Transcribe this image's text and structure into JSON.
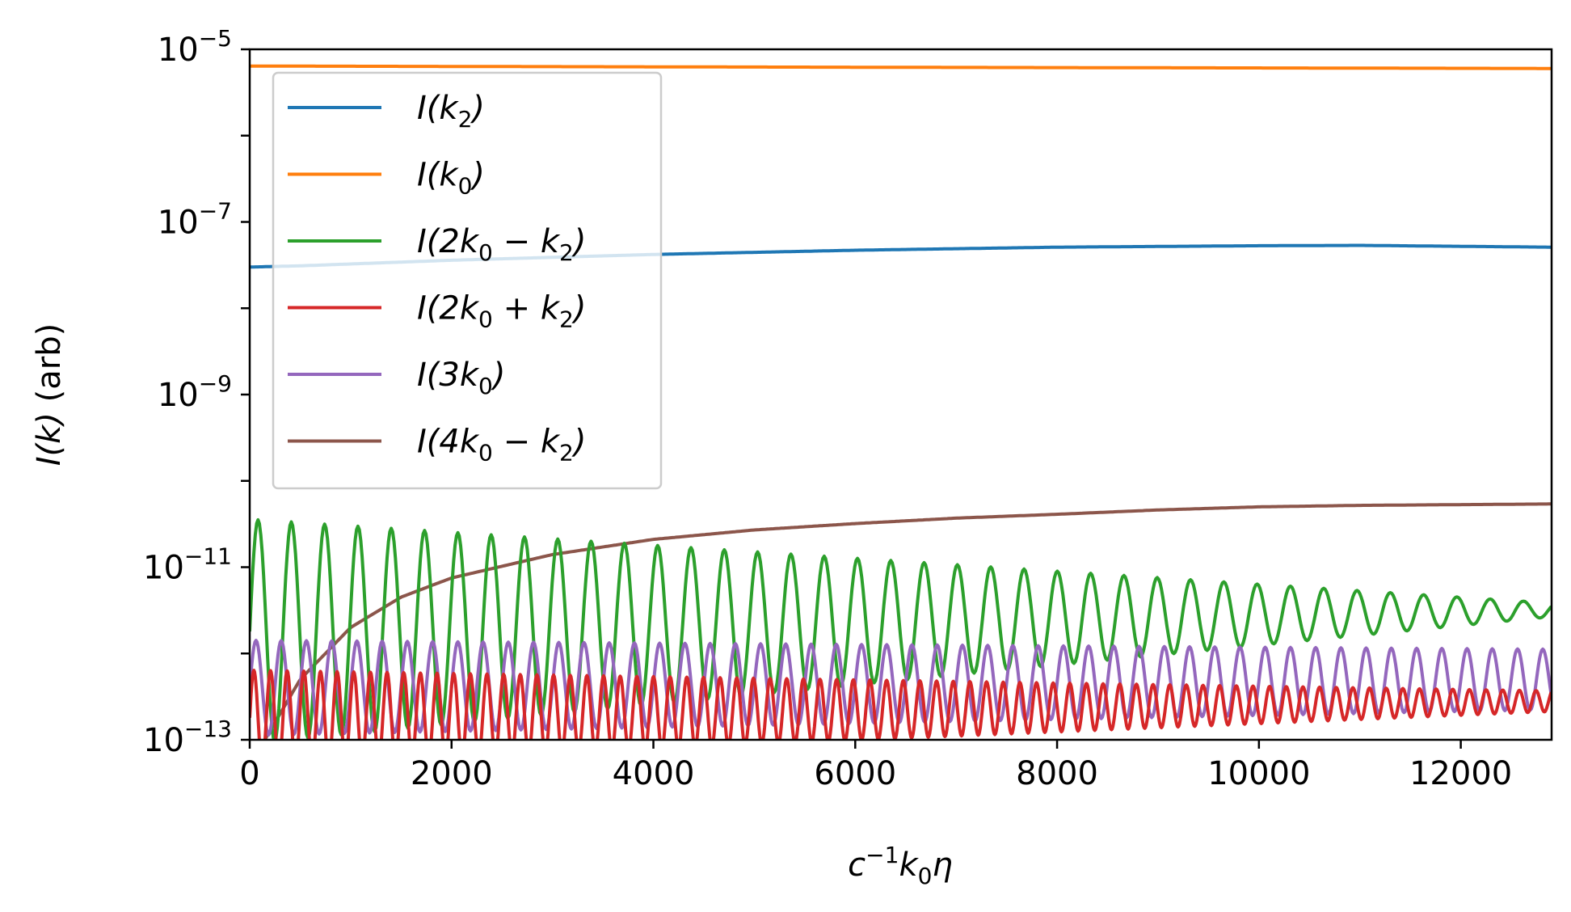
{
  "chart_data": {
    "type": "line",
    "title": "",
    "xlabel": "c^{-1} k_0 η",
    "xlabel_parts": {
      "c": "c",
      "sup": "−1",
      "k": "k",
      "sub": "0",
      "eta": "η"
    },
    "ylabel": "I(k) (arb)",
    "ylabel_parts": {
      "main": "I(k)",
      "unit": " (arb)"
    },
    "yscale": "log",
    "xlim": [
      0,
      12900
    ],
    "ylim": [
      1e-13,
      1e-05
    ],
    "xticks": [
      0,
      2000,
      4000,
      6000,
      8000,
      10000,
      12000
    ],
    "xtick_labels": [
      "0",
      "2000",
      "4000",
      "6000",
      "8000",
      "10000",
      "12000"
    ],
    "yticks_exp": [
      -13,
      -11,
      -9,
      -7,
      -5
    ],
    "ytick_base": "10",
    "ytick_exponents": [
      "−13",
      "−11",
      "−9",
      "−7",
      "−5"
    ],
    "legend_position": "top-left",
    "series": [
      {
        "name": "I(k₂)",
        "label": {
          "pre": "I(",
          "k1": "k",
          "s1": "2",
          "mid": "",
          "k2": "",
          "s2": "",
          "post": ")"
        },
        "color": "#1f77b4",
        "model": "blue",
        "points": [
          [
            0,
            3e-08
          ],
          [
            500,
            3.1e-08
          ],
          [
            2000,
            3.6e-08
          ],
          [
            4000,
            4.2e-08
          ],
          [
            6000,
            4.7e-08
          ],
          [
            8000,
            5.1e-08
          ],
          [
            10000,
            5.3e-08
          ],
          [
            11000,
            5.35e-08
          ],
          [
            12900,
            5.1e-08
          ]
        ]
      },
      {
        "name": "I(k₀)",
        "label": {
          "pre": "I(",
          "k1": "k",
          "s1": "0",
          "mid": "",
          "k2": "",
          "s2": "",
          "post": ")"
        },
        "color": "#ff7f0e",
        "model": "orange",
        "points": [
          [
            0,
            6.4e-06
          ],
          [
            6000,
            6.2e-06
          ],
          [
            12900,
            6e-06
          ]
        ]
      },
      {
        "name": "I(2k₀ − k₂)",
        "label": {
          "pre": "I(2",
          "k1": "k",
          "s1": "0",
          "mid": " − ",
          "k2": "k",
          "s2": "2",
          "post": ")"
        },
        "color": "#2ca02c",
        "model": "green",
        "mean_start": 1.8e-12,
        "mean_end": 3.2e-12,
        "amp_start": 1.3,
        "amp_end": 0.08,
        "period": 330
      },
      {
        "name": "I(2k₀ + k₂)",
        "label": {
          "pre": "I(2",
          "k1": "k",
          "s1": "0",
          "mid": " + ",
          "k2": "k",
          "s2": "2",
          "post": ")"
        },
        "color": "#d62728",
        "model": "red",
        "mean_start": 1.8e-13,
        "mean_end": 2.8e-13,
        "amp_start": 0.55,
        "amp_end": 0.12,
        "period": 165
      },
      {
        "name": "I(3k₀)",
        "label": {
          "pre": "I(3",
          "k1": "k",
          "s1": "0",
          "mid": "",
          "k2": "",
          "s2": "",
          "post": ")"
        },
        "color": "#9467bd",
        "model": "purple",
        "mean_start": 4e-13,
        "mean_end": 5e-13,
        "amp_start": 0.55,
        "amp_end": 0.35,
        "period": 250
      },
      {
        "name": "I(4k₀ − k₂)",
        "label": {
          "pre": "I(4",
          "k1": "k",
          "s1": "0",
          "mid": " − ",
          "k2": "k",
          "s2": "2",
          "post": ")"
        },
        "color": "#8c564b",
        "model": "brown",
        "points": [
          [
            150,
            1e-13
          ],
          [
            500,
            5e-13
          ],
          [
            1000,
            2e-12
          ],
          [
            1500,
            4.5e-12
          ],
          [
            2000,
            7.5e-12
          ],
          [
            3000,
            1.4e-11
          ],
          [
            4000,
            2.1e-11
          ],
          [
            5000,
            2.7e-11
          ],
          [
            6000,
            3.2e-11
          ],
          [
            7000,
            3.7e-11
          ],
          [
            8000,
            4.1e-11
          ],
          [
            9000,
            4.6e-11
          ],
          [
            10000,
            5e-11
          ],
          [
            11000,
            5.2e-11
          ],
          [
            12900,
            5.4e-11
          ]
        ]
      }
    ]
  }
}
